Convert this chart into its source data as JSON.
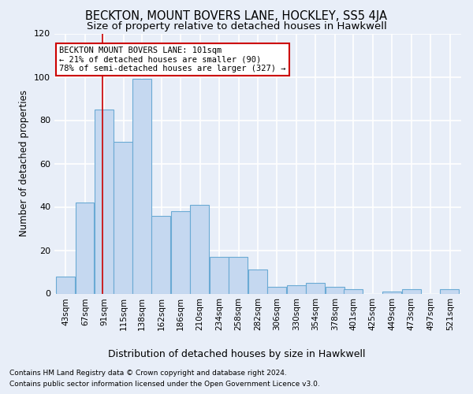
{
  "title": "BECKTON, MOUNT BOVERS LANE, HOCKLEY, SS5 4JA",
  "subtitle": "Size of property relative to detached houses in Hawkwell",
  "xlabel_bottom": "Distribution of detached houses by size in Hawkwell",
  "ylabel": "Number of detached properties",
  "footnote1": "Contains HM Land Registry data © Crown copyright and database right 2024.",
  "footnote2": "Contains public sector information licensed under the Open Government Licence v3.0.",
  "bins": [
    43,
    67,
    91,
    115,
    138,
    162,
    186,
    210,
    234,
    258,
    282,
    306,
    330,
    354,
    378,
    401,
    425,
    449,
    473,
    497,
    521
  ],
  "counts": [
    8,
    42,
    85,
    70,
    99,
    36,
    38,
    41,
    17,
    17,
    11,
    3,
    4,
    5,
    3,
    2,
    0,
    1,
    2,
    0,
    2
  ],
  "bar_color": "#c5d8f0",
  "bar_edge_color": "#6aaad4",
  "property_size": 101,
  "annotation_line1": "BECKTON MOUNT BOVERS LANE: 101sqm",
  "annotation_line2": "← 21% of detached houses are smaller (90)",
  "annotation_line3": "78% of semi-detached houses are larger (327) →",
  "annotation_box_color": "white",
  "annotation_box_edge_color": "#cc0000",
  "vline_color": "#cc0000",
  "ylim": [
    0,
    120
  ],
  "yticks": [
    0,
    20,
    40,
    60,
    80,
    100,
    120
  ],
  "background_color": "#e8eef8",
  "grid_color": "white",
  "title_fontsize": 10.5,
  "subtitle_fontsize": 9.5,
  "ylabel_fontsize": 8.5,
  "tick_fontsize": 7.5,
  "annot_fontsize": 7.5,
  "footnote_fontsize": 6.5
}
